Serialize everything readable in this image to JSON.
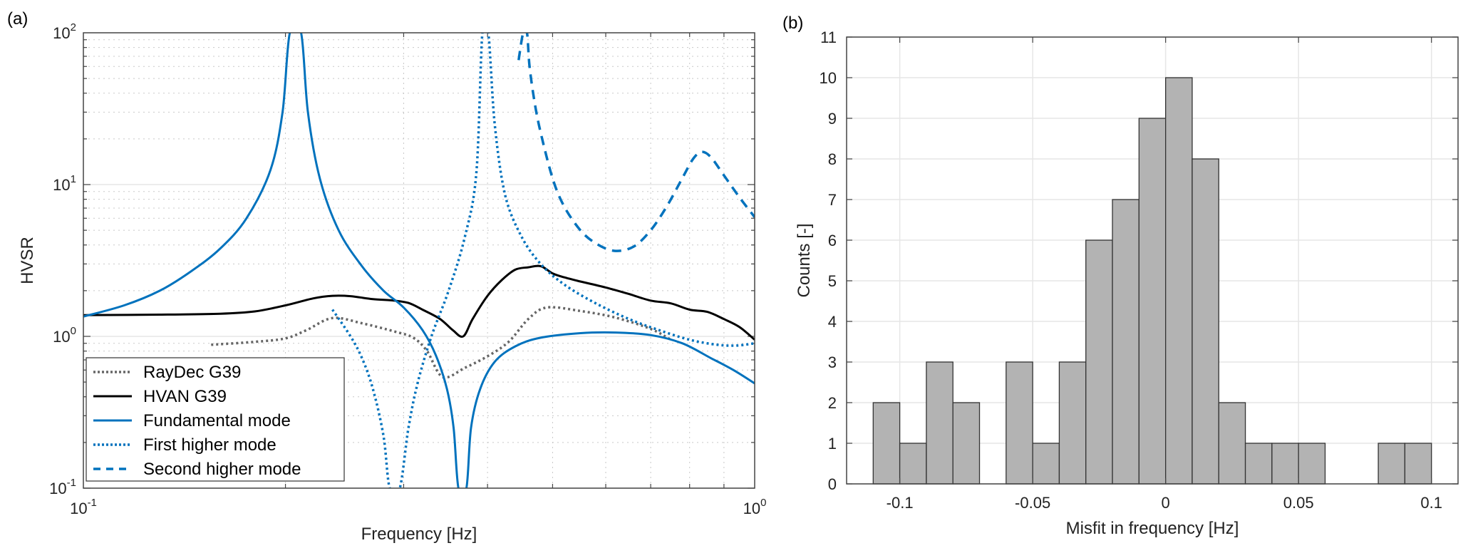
{
  "chart_data": [
    {
      "panel": "(a)",
      "type": "line",
      "xscale": "log",
      "yscale": "log",
      "xlabel": "Frequency [Hz]",
      "ylabel": "HVSR",
      "xlim": [
        0.1,
        1.0
      ],
      "ylim": [
        0.1,
        100
      ],
      "x_ticks": [
        {
          "base": "10",
          "exp": "-1",
          "value": 0.1
        },
        {
          "base": "10",
          "exp": "0",
          "value": 1.0
        }
      ],
      "y_ticks": [
        {
          "base": "10",
          "exp": "-1",
          "value": 0.1
        },
        {
          "base": "10",
          "exp": "0",
          "value": 1
        },
        {
          "base": "10",
          "exp": "1",
          "value": 10
        },
        {
          "base": "10",
          "exp": "2",
          "value": 100
        }
      ],
      "grid": true,
      "legend_position": "bottom-left",
      "series": [
        {
          "name": "RayDec G39",
          "color": "#666666",
          "style": "dotted",
          "x": [
            0.155,
            0.18,
            0.2,
            0.215,
            0.235,
            0.26,
            0.29,
            0.31,
            0.325,
            0.343,
            0.37,
            0.4,
            0.43,
            0.46,
            0.49,
            0.55,
            0.62,
            0.7,
            0.75
          ],
          "y": [
            0.88,
            0.92,
            0.97,
            1.1,
            1.32,
            1.22,
            1.08,
            0.98,
            0.8,
            0.54,
            0.62,
            0.74,
            0.92,
            1.3,
            1.55,
            1.47,
            1.33,
            1.12,
            0.95
          ]
        },
        {
          "name": "HVAN G39",
          "color": "#000000",
          "style": "solid",
          "x": [
            0.1,
            0.13,
            0.16,
            0.18,
            0.2,
            0.22,
            0.235,
            0.25,
            0.27,
            0.29,
            0.305,
            0.32,
            0.34,
            0.355,
            0.368,
            0.38,
            0.4,
            0.42,
            0.44,
            0.46,
            0.48,
            0.5,
            0.52,
            0.55,
            0.6,
            0.65,
            0.7,
            0.75,
            0.8,
            0.85,
            0.9,
            0.95,
            1.0
          ],
          "y": [
            1.38,
            1.39,
            1.41,
            1.46,
            1.6,
            1.78,
            1.85,
            1.84,
            1.76,
            1.72,
            1.66,
            1.5,
            1.3,
            1.1,
            1.0,
            1.3,
            1.85,
            2.35,
            2.75,
            2.85,
            2.9,
            2.6,
            2.45,
            2.3,
            2.1,
            1.9,
            1.72,
            1.65,
            1.5,
            1.45,
            1.3,
            1.15,
            0.95
          ]
        },
        {
          "name": "Fundamental mode",
          "color": "#0072BD",
          "style": "solid",
          "x": [
            0.1,
            0.115,
            0.13,
            0.145,
            0.16,
            0.175,
            0.19,
            0.198,
            0.203,
            0.211,
            0.216,
            0.225,
            0.24,
            0.26,
            0.28,
            0.3,
            0.32,
            0.335,
            0.348,
            0.356,
            0.362,
            0.372,
            0.378,
            0.39,
            0.41,
            0.44,
            0.48,
            0.55,
            0.62,
            0.7,
            0.78,
            0.86,
            0.93,
            1.0
          ],
          "y": [
            1.35,
            1.6,
            2.0,
            2.7,
            3.8,
            6.0,
            12.5,
            30,
            100,
            100,
            30,
            11,
            5.0,
            2.9,
            2.0,
            1.55,
            1.1,
            0.75,
            0.45,
            0.25,
            0.1,
            0.1,
            0.25,
            0.45,
            0.68,
            0.86,
            0.98,
            1.05,
            1.06,
            1.02,
            0.9,
            0.72,
            0.6,
            0.49
          ]
        },
        {
          "name": "First higher mode",
          "color": "#0072BD",
          "style": "dotted",
          "x": [
            0.235,
            0.25,
            0.26,
            0.27,
            0.28,
            0.286,
            0.296,
            0.305,
            0.315,
            0.33,
            0.35,
            0.37,
            0.385,
            0.393,
            0.401,
            0.41,
            0.425,
            0.45,
            0.48,
            0.52,
            0.58,
            0.65,
            0.72,
            0.8,
            0.88,
            0.94,
            1.0
          ],
          "y": [
            1.5,
            1.0,
            0.72,
            0.45,
            0.22,
            0.1,
            0.1,
            0.25,
            0.5,
            1.0,
            2.0,
            4.5,
            12,
            100,
            100,
            25,
            8.5,
            4.5,
            3.0,
            2.2,
            1.65,
            1.3,
            1.1,
            0.95,
            0.88,
            0.87,
            0.9
          ]
        },
        {
          "name": "Second higher mode",
          "color": "#0072BD",
          "style": "dashed",
          "x": [
            0.445,
            0.452,
            0.458,
            0.462,
            0.47,
            0.48,
            0.5,
            0.52,
            0.55,
            0.58,
            0.618,
            0.66,
            0.7,
            0.74,
            0.78,
            0.81,
            0.834,
            0.86,
            0.9,
            0.95,
            1.0
          ],
          "y": [
            66,
            100,
            100,
            60,
            35,
            22,
            11,
            7.2,
            5.0,
            4.1,
            3.66,
            3.9,
            5.0,
            7.2,
            11,
            14.8,
            16.4,
            15.2,
            11.5,
            8.2,
            6.1
          ]
        }
      ]
    },
    {
      "panel": "(b)",
      "type": "bar",
      "subtype": "histogram",
      "xlabel": "Misfit in frequency [Hz]",
      "ylabel": "Counts [-]",
      "xlim": [
        -0.12,
        0.11
      ],
      "ylim": [
        0,
        11
      ],
      "x_ticks": [
        "-0.1",
        "-0.05",
        "0",
        "0.05",
        "0.1"
      ],
      "x_tick_values": [
        -0.1,
        -0.05,
        0,
        0.05,
        0.1
      ],
      "y_ticks": [
        "0",
        "1",
        "2",
        "3",
        "4",
        "5",
        "6",
        "7",
        "8",
        "9",
        "10",
        "11"
      ],
      "grid": true,
      "bar_color": "#b3b3b3",
      "bin_width": 0.01,
      "bin_edges_start": [
        -0.11,
        -0.1,
        -0.09,
        -0.08,
        -0.07,
        -0.06,
        -0.05,
        -0.04,
        -0.03,
        -0.02,
        -0.01,
        0.0,
        0.01,
        0.02,
        0.03,
        0.04,
        0.05,
        0.06,
        0.07,
        0.08,
        0.09
      ],
      "values": [
        2,
        1,
        3,
        2,
        0,
        3,
        1,
        3,
        6,
        7,
        9,
        10,
        8,
        2,
        1,
        1,
        1,
        0,
        0,
        1,
        1
      ]
    }
  ]
}
